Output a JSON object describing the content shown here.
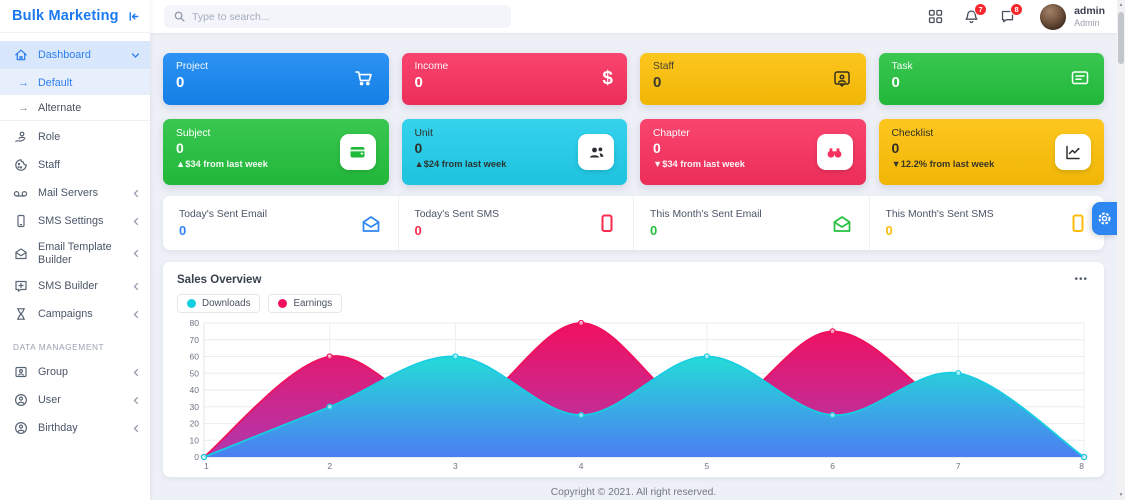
{
  "app": {
    "brand": "Bulk Marketing",
    "brand_color": "#1b7af3"
  },
  "header": {
    "search_placeholder": "Type to search...",
    "notification_count": "7",
    "message_count": "8",
    "user": {
      "name": "admin",
      "role": "Admin"
    }
  },
  "sidebar": {
    "items": [
      {
        "label": "Dashboard"
      },
      {
        "label": "Default"
      },
      {
        "label": "Alternate"
      },
      {
        "label": "Role"
      },
      {
        "label": "Staff"
      },
      {
        "label": "Mail Servers"
      },
      {
        "label": "SMS Settings"
      },
      {
        "label": "Email Template Builder"
      },
      {
        "label": "SMS Builder"
      },
      {
        "label": "Campaigns"
      },
      {
        "label": "Group"
      },
      {
        "label": "User"
      },
      {
        "label": "Birthday"
      }
    ],
    "section_label": "DATA MANAGEMENT"
  },
  "stat_cards": [
    {
      "title": "Project",
      "value": "0",
      "color": "#1586f2",
      "icon": "cart-icon"
    },
    {
      "title": "Income",
      "value": "0",
      "color": "#f8305e",
      "icon": "dollar-icon"
    },
    {
      "title": "Staff",
      "value": "0",
      "color": "#fdc006",
      "icon": "id-badge-icon"
    },
    {
      "title": "Task",
      "value": "0",
      "color": "#23c13d",
      "icon": "chat-icon"
    }
  ],
  "trend_cards": [
    {
      "title": "Subject",
      "value": "0",
      "delta": "▲$34 from last week",
      "color": "#23c13d",
      "accent": "#1fb93a",
      "icon": "wallet-icon"
    },
    {
      "title": "Unit",
      "value": "0",
      "delta": "▲$24 from last week",
      "color": "#1fcdea",
      "accent": "#2d2d33",
      "icon": "people-icon"
    },
    {
      "title": "Chapter",
      "value": "0",
      "delta": "▼$34 from last week",
      "color": "#f8305e",
      "accent": "#f8305e",
      "icon": "binoculars-icon"
    },
    {
      "title": "Checklist",
      "value": "0",
      "delta": "▼12.2% from last week",
      "color": "#fdc006",
      "accent": "#33302a",
      "icon": "chart-icon"
    }
  ],
  "mini_stats": [
    {
      "label": "Today's Sent Email",
      "value": "0",
      "color": "#2f86f3",
      "icon": "envelope-icon"
    },
    {
      "label": "Today's Sent SMS",
      "value": "0",
      "color": "#f82a4e",
      "icon": "smartphone-icon"
    },
    {
      "label": "This Month's Sent Email",
      "value": "0",
      "color": "#23c13d",
      "icon": "envelope-icon"
    },
    {
      "label": "This Month's Sent SMS",
      "value": "0",
      "color": "#fdbb0a",
      "icon": "smartphone-icon"
    }
  ],
  "sales_card": {
    "title": "Sales Overview",
    "menu": "•••"
  },
  "chart_data": {
    "type": "area",
    "title": "Sales Overview",
    "x": [
      1,
      2,
      3,
      4,
      5,
      6,
      7,
      8
    ],
    "series": [
      {
        "name": "Downloads",
        "values": [
          0,
          30,
          60,
          25,
          60,
          25,
          50,
          0
        ],
        "color": "#17cde2",
        "gradient": [
          "#25dcd6",
          "#4b7ef2"
        ]
      },
      {
        "name": "Earnings",
        "values": [
          0,
          60,
          25,
          80,
          25,
          75,
          25,
          0
        ],
        "color": "#f1105f",
        "gradient": [
          "#f1105f",
          "#b038ae"
        ]
      }
    ],
    "ylim": [
      0,
      80
    ],
    "ytick_step": 10,
    "grid": true,
    "legend_position": "top-left",
    "xlabel": "",
    "ylabel": ""
  },
  "footer": {
    "copyright": "Copyright © 2021. All right reserved."
  }
}
